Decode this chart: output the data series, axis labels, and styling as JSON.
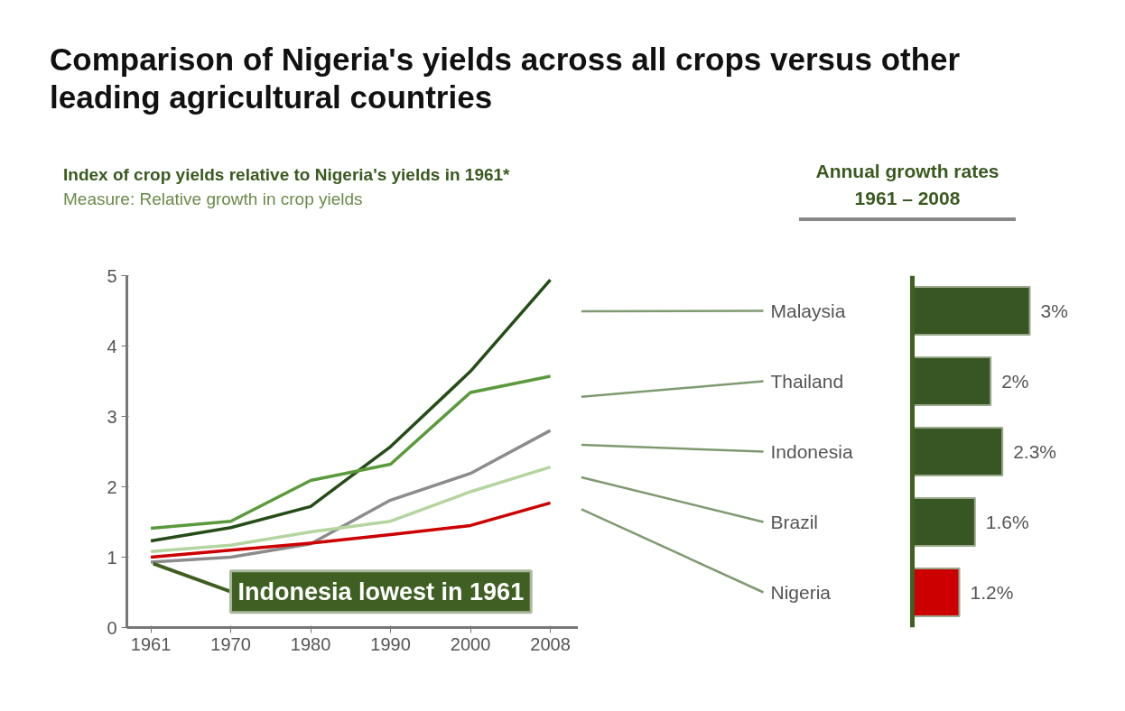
{
  "chart_data": [
    {
      "type": "line",
      "title": "Comparison of Nigeria's yields across all crops versus other leading agricultural countries",
      "subtitle": "Index of crop yields relative to Nigeria's yields in 1961*",
      "annotations": [
        "Measure: Relative growth in crop yields",
        {
          "text": "Indonesia lowest in 1961",
          "x": "1961",
          "y": 0.93
        }
      ],
      "categories": [
        "1961",
        "1970",
        "1980",
        "1990",
        "2000",
        "2008"
      ],
      "ylim": [
        0,
        5
      ],
      "yticks": [
        0,
        1,
        2,
        3,
        4,
        5
      ],
      "grid": false,
      "series": [
        {
          "color": "#254d17",
          "values": [
            1.23,
            1.42,
            1.72,
            2.57,
            3.64,
            4.94
          ]
        },
        {
          "color": "#5a9a3c",
          "values": [
            1.41,
            1.51,
            2.09,
            2.32,
            3.34,
            3.57
          ]
        },
        {
          "color": "#8c8c8c",
          "values": [
            0.93,
            1.0,
            1.19,
            1.81,
            2.19,
            2.8
          ]
        },
        {
          "color": "#b5d5a0",
          "values": [
            1.08,
            1.17,
            1.36,
            1.51,
            1.93,
            2.28
          ]
        },
        {
          "color": "#cc0000",
          "values": [
            1.0,
            1.1,
            1.2,
            1.32,
            1.45,
            1.77
          ]
        }
      ]
    },
    {
      "type": "bar",
      "orientation": "horizontal",
      "title": "Annual growth rates 1961 – 2008",
      "categories": [
        "Malaysia",
        "Thailand",
        "Indonesia",
        "Brazil",
        "Nigeria"
      ],
      "values": [
        3,
        2,
        2.3,
        1.6,
        1.2
      ],
      "colors": [
        "#375623",
        "#375623",
        "#375623",
        "#375623",
        "#cc0000"
      ],
      "value_labels": [
        "3%",
        "2%",
        "2.3%",
        "1.6%",
        "1.2%"
      ],
      "tick_labels": "y"
    }
  ]
}
